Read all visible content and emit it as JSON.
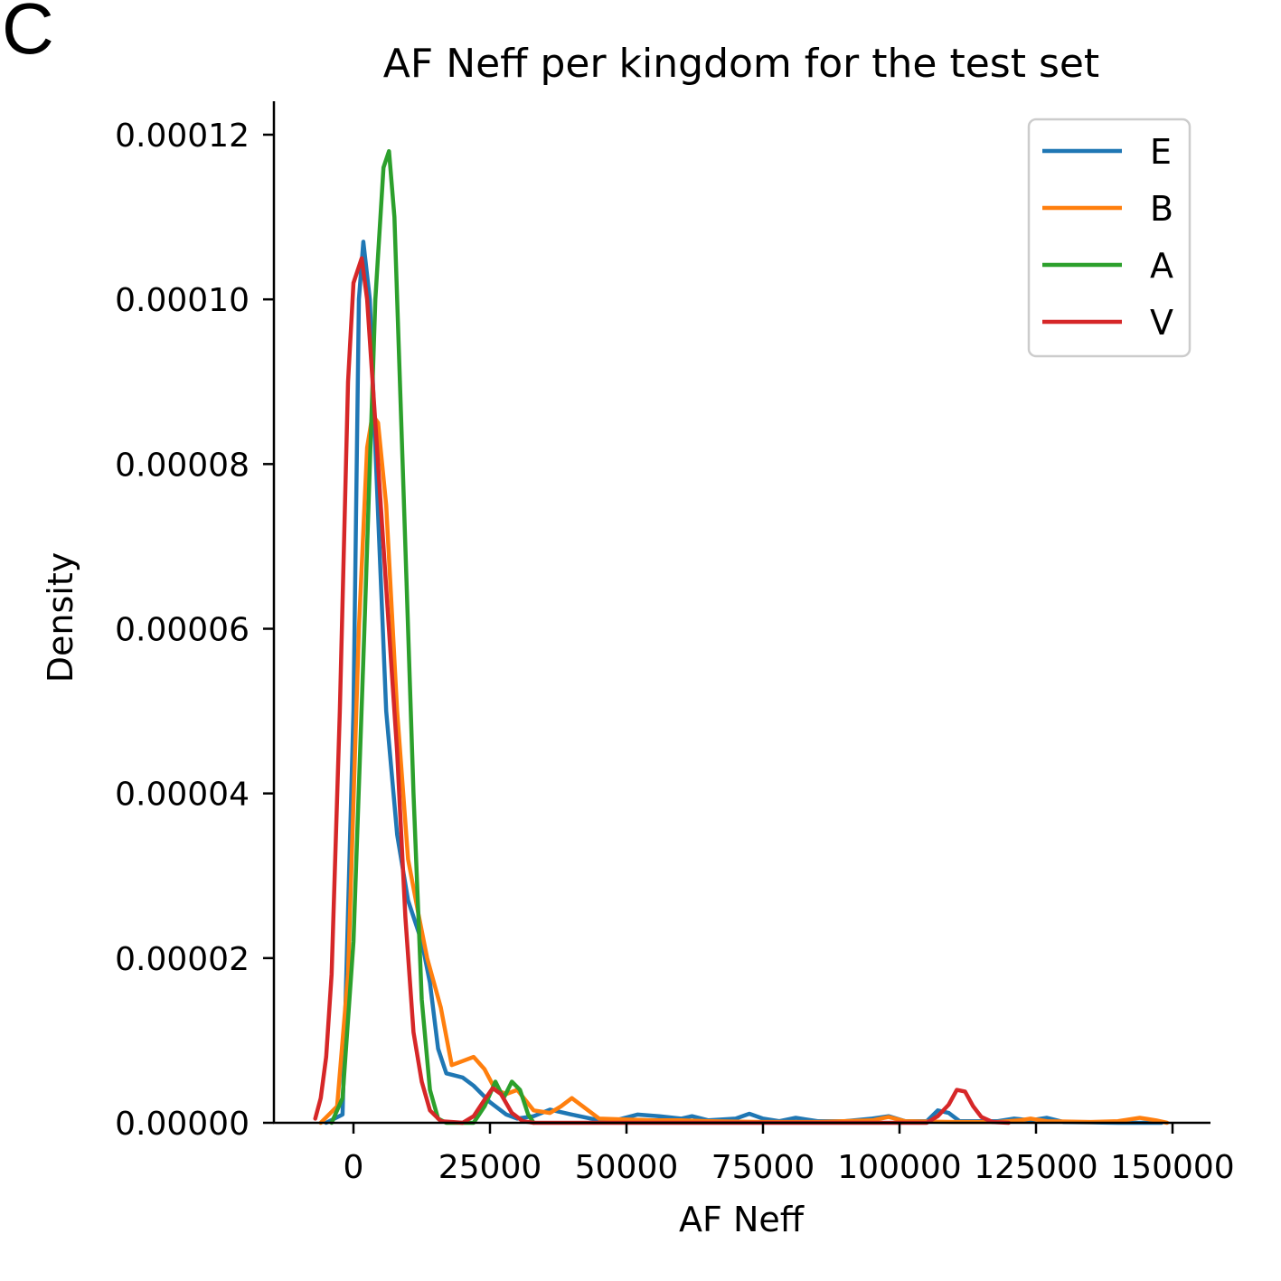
{
  "panel_letter": "C",
  "chart_data": {
    "type": "line",
    "title": "AF Neff per kingdom for the test set",
    "xlabel": "AF Neff",
    "ylabel": "Density",
    "xlim": [
      -15000,
      157000
    ],
    "ylim": [
      0,
      0.000124
    ],
    "xticks": [
      0,
      25000,
      50000,
      75000,
      100000,
      125000,
      150000
    ],
    "xtick_labels": [
      "0",
      "25000",
      "50000",
      "75000",
      "100000",
      "125000",
      "150000"
    ],
    "yticks": [
      0,
      2e-05,
      4e-05,
      6e-05,
      8e-05,
      0.0001,
      0.00012
    ],
    "ytick_labels": [
      "0.00000",
      "0.00002",
      "0.00004",
      "0.00006",
      "0.00008",
      "0.00010",
      "0.00012"
    ],
    "grid": false,
    "legend_position": "top-right",
    "series": [
      {
        "name": "E",
        "color": "#1f77b4",
        "points": [
          [
            -5000,
            0
          ],
          [
            -2000,
            1e-06
          ],
          [
            0,
            5e-05
          ],
          [
            1000,
            0.0001
          ],
          [
            1800,
            0.000107
          ],
          [
            3000,
            0.0001
          ],
          [
            4000,
            8.2e-05
          ],
          [
            6000,
            5e-05
          ],
          [
            8000,
            3.5e-05
          ],
          [
            10000,
            2.7e-05
          ],
          [
            12500,
            2.2e-05
          ],
          [
            14000,
            1.7e-05
          ],
          [
            15500,
            9e-06
          ],
          [
            17000,
            6e-06
          ],
          [
            20000,
            5.5e-06
          ],
          [
            22000,
            4.5e-06
          ],
          [
            25000,
            2.5e-06
          ],
          [
            28000,
            1e-06
          ],
          [
            30000,
            5e-07
          ],
          [
            33000,
            8e-07
          ],
          [
            36000,
            1.6e-06
          ],
          [
            40000,
            1e-06
          ],
          [
            45000,
            3e-07
          ],
          [
            48000,
            3e-07
          ],
          [
            52000,
            1e-06
          ],
          [
            56000,
            8e-07
          ],
          [
            60000,
            5e-07
          ],
          [
            62000,
            8e-07
          ],
          [
            65000,
            3e-07
          ],
          [
            70000,
            5e-07
          ],
          [
            72500,
            1.1e-06
          ],
          [
            75000,
            5e-07
          ],
          [
            78000,
            2e-07
          ],
          [
            81000,
            6e-07
          ],
          [
            85000,
            2e-07
          ],
          [
            90000,
            2e-07
          ],
          [
            95000,
            5e-07
          ],
          [
            98000,
            8e-07
          ],
          [
            101000,
            2e-07
          ],
          [
            105000,
            2e-07
          ],
          [
            107000,
            1.5e-06
          ],
          [
            109000,
            1.2e-06
          ],
          [
            111000,
            2e-07
          ],
          [
            118000,
            2e-07
          ],
          [
            121000,
            5e-07
          ],
          [
            124000,
            3e-07
          ],
          [
            127000,
            6e-07
          ],
          [
            130000,
            1e-07
          ],
          [
            140000,
            0
          ],
          [
            148000,
            0
          ]
        ]
      },
      {
        "name": "B",
        "color": "#ff7f0e",
        "points": [
          [
            -6000,
            0
          ],
          [
            -3000,
            2e-06
          ],
          [
            -1000,
            1.8e-05
          ],
          [
            1000,
            6e-05
          ],
          [
            2500,
            8.2e-05
          ],
          [
            3500,
            8.6e-05
          ],
          [
            4500,
            8.5e-05
          ],
          [
            6000,
            7.5e-05
          ],
          [
            8000,
            5e-05
          ],
          [
            10000,
            3.2e-05
          ],
          [
            12000,
            2.5e-05
          ],
          [
            13500,
            2e-05
          ],
          [
            16000,
            1.4e-05
          ],
          [
            18000,
            7e-06
          ],
          [
            20000,
            7.5e-06
          ],
          [
            22000,
            8e-06
          ],
          [
            24000,
            6.5e-06
          ],
          [
            26000,
            4e-06
          ],
          [
            28000,
            3.5e-06
          ],
          [
            30000,
            4e-06
          ],
          [
            33000,
            1.5e-06
          ],
          [
            36000,
            1.2e-06
          ],
          [
            38000,
            2e-06
          ],
          [
            40000,
            3e-06
          ],
          [
            42000,
            2e-06
          ],
          [
            45000,
            5e-07
          ],
          [
            50000,
            4e-07
          ],
          [
            55000,
            3e-07
          ],
          [
            60000,
            3e-07
          ],
          [
            65000,
            2e-07
          ],
          [
            75000,
            1e-07
          ],
          [
            85000,
            1e-07
          ],
          [
            95000,
            3e-07
          ],
          [
            98000,
            7e-07
          ],
          [
            101000,
            2e-07
          ],
          [
            110000,
            1e-07
          ],
          [
            118000,
            1e-07
          ],
          [
            122000,
            3e-07
          ],
          [
            124000,
            5e-07
          ],
          [
            127000,
            2e-07
          ],
          [
            135000,
            1e-07
          ],
          [
            140000,
            2e-07
          ],
          [
            144000,
            6e-07
          ],
          [
            147000,
            3e-07
          ],
          [
            149000,
            0
          ]
        ]
      },
      {
        "name": "A",
        "color": "#2ca02c",
        "points": [
          [
            -4000,
            0
          ],
          [
            -2000,
            3e-06
          ],
          [
            0,
            2.2e-05
          ],
          [
            2000,
            6e-05
          ],
          [
            4000,
            0.0001
          ],
          [
            5500,
            0.000116
          ],
          [
            6500,
            0.000118
          ],
          [
            7500,
            0.00011
          ],
          [
            9000,
            8e-05
          ],
          [
            11000,
            4e-05
          ],
          [
            12500,
            1.5e-05
          ],
          [
            14000,
            4e-06
          ],
          [
            15500,
            5e-07
          ],
          [
            17000,
            0
          ],
          [
            22000,
            0
          ],
          [
            24000,
            2e-06
          ],
          [
            26000,
            5e-06
          ],
          [
            27500,
            3e-06
          ],
          [
            29000,
            5e-06
          ],
          [
            30500,
            4e-06
          ],
          [
            32000,
            1e-06
          ],
          [
            33000,
            0
          ]
        ]
      },
      {
        "name": "V",
        "color": "#d62728",
        "points": [
          [
            -7000,
            5e-07
          ],
          [
            -6000,
            3e-06
          ],
          [
            -5000,
            8e-06
          ],
          [
            -4000,
            1.8e-05
          ],
          [
            -2500,
            5e-05
          ],
          [
            -1000,
            9e-05
          ],
          [
            0,
            0.000102
          ],
          [
            1500,
            0.000105
          ],
          [
            2500,
            0.0001
          ],
          [
            4000,
            8.5e-05
          ],
          [
            6000,
            6.5e-05
          ],
          [
            8000,
            4.5e-05
          ],
          [
            9500,
            2.5e-05
          ],
          [
            11000,
            1.1e-05
          ],
          [
            12500,
            5e-06
          ],
          [
            14000,
            1.5e-06
          ],
          [
            16000,
            2e-07
          ],
          [
            20000,
            0
          ],
          [
            22000,
            8e-07
          ],
          [
            24000,
            2.8e-06
          ],
          [
            25500,
            4.2e-06
          ],
          [
            27000,
            3.5e-06
          ],
          [
            29000,
            1.2e-06
          ],
          [
            31000,
            2e-07
          ],
          [
            33000,
            0
          ],
          [
            105000,
            0
          ],
          [
            107000,
            8e-07
          ],
          [
            109000,
            2.2e-06
          ],
          [
            110500,
            4e-06
          ],
          [
            112000,
            3.8e-06
          ],
          [
            113500,
            2e-06
          ],
          [
            115000,
            7e-07
          ],
          [
            117000,
            1e-07
          ],
          [
            120000,
            0
          ]
        ]
      }
    ]
  }
}
